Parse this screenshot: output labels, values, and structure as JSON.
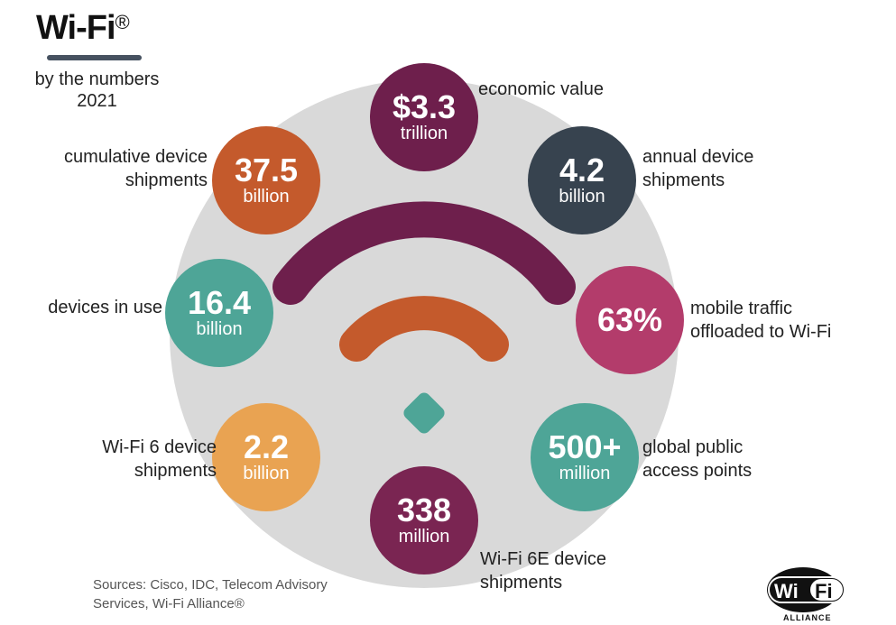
{
  "header": {
    "title": "Wi-Fi",
    "title_mark": "®",
    "subtitle": "by the numbers",
    "year": "2021"
  },
  "stats": [
    {
      "value": "$3.3",
      "unit": "trillion",
      "label": "economic value",
      "color": "#6e1f4c"
    },
    {
      "value": "37.5",
      "unit": "billion",
      "label": "cumulative device shipments",
      "color": "#c45a2c"
    },
    {
      "value": "4.2",
      "unit": "billion",
      "label": "annual device shipments",
      "color": "#37434f"
    },
    {
      "value": "16.4",
      "unit": "billion",
      "label": "devices in use",
      "color": "#4ea597"
    },
    {
      "value": "63%",
      "unit": "",
      "label": "mobile traffic offloaded to Wi-Fi",
      "color": "#b33c6b"
    },
    {
      "value": "2.2",
      "unit": "billion",
      "label": "Wi-Fi 6 device shipments",
      "color": "#e9a352"
    },
    {
      "value": "500+",
      "unit": "million",
      "label": "global public access points",
      "color": "#4ea597"
    },
    {
      "value": "338",
      "unit": "million",
      "label": "Wi-Fi 6E device shipments",
      "color": "#7a2552"
    }
  ],
  "footer": {
    "sources": "Sources: Cisco, IDC, Telecom Advisory Services, Wi-Fi Alliance®"
  },
  "logo": {
    "text": "Wi Fi ALLIANCE"
  },
  "colors": {
    "background_circle": "#d9d9d9",
    "arc_outer": "#6e1f4c",
    "arc_inner": "#c45a2c",
    "dot": "#4ea597"
  }
}
